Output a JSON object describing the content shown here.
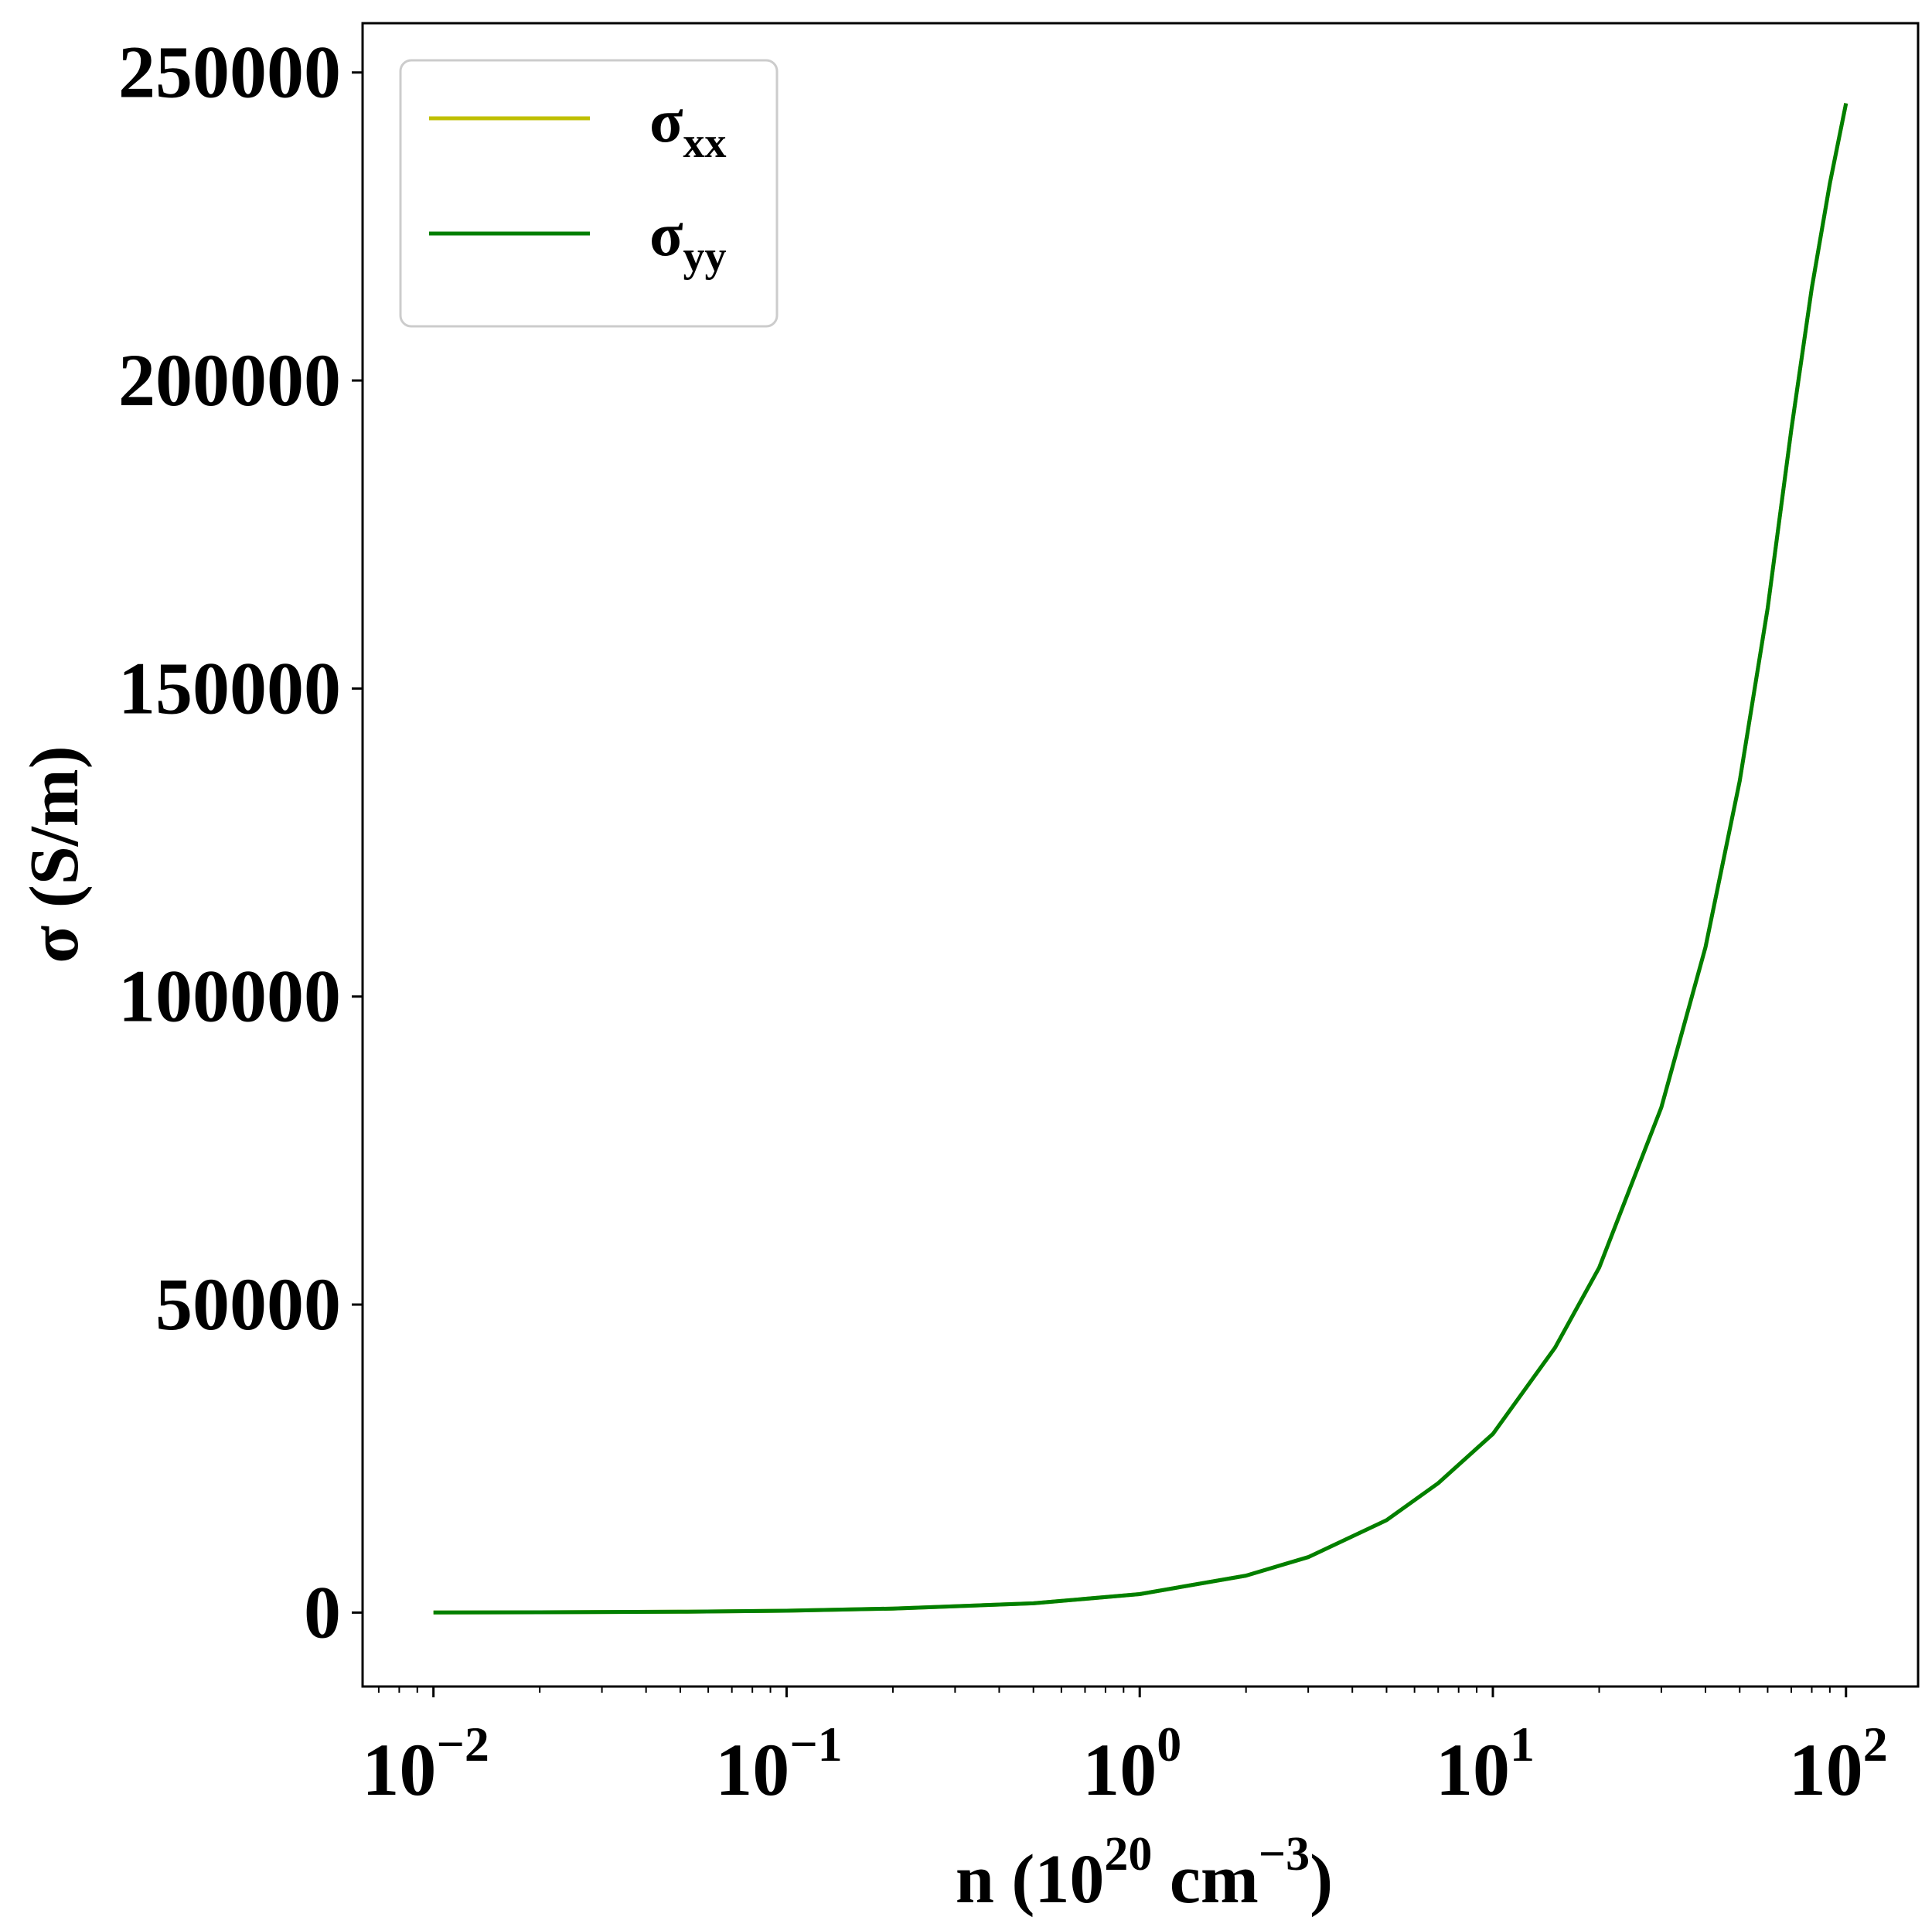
{
  "chart_data": {
    "type": "line",
    "xlabel": {
      "base": "n (10",
      "sup1": "20",
      "mid": " cm",
      "sup2": "−3",
      "end": ")"
    },
    "ylabel": "σ (S/m)",
    "xscale": "log",
    "xlim": [
      0.0063,
      160
    ],
    "ylim": [
      -12000,
      258000
    ],
    "grid": false,
    "legend_position": "top-left",
    "x_ticks": [
      {
        "value": 0.01,
        "base": "10",
        "exp": "−2"
      },
      {
        "value": 0.1,
        "base": "10",
        "exp": "−1"
      },
      {
        "value": 1,
        "base": "10",
        "exp": "0"
      },
      {
        "value": 10,
        "base": "10",
        "exp": "1"
      },
      {
        "value": 100,
        "base": "10",
        "exp": "2"
      }
    ],
    "y_ticks": [
      {
        "value": 0,
        "label": "0"
      },
      {
        "value": 50000,
        "label": "50000"
      },
      {
        "value": 100000,
        "label": "100000"
      },
      {
        "value": 150000,
        "label": "150000"
      },
      {
        "value": 200000,
        "label": "200000"
      },
      {
        "value": 250000,
        "label": "250000"
      }
    ],
    "x": [
      0.01,
      0.02,
      0.05,
      0.1,
      0.2,
      0.5,
      1,
      2,
      3,
      5,
      7,
      10,
      15,
      20,
      30,
      40,
      50,
      60,
      70,
      80,
      90,
      100
    ],
    "series": [
      {
        "name": "σxx",
        "legend_base": "σ",
        "legend_sub": "xx",
        "color": "#bfbf00",
        "values": [
          20,
          50,
          140,
          300,
          650,
          1500,
          3000,
          6000,
          9000,
          15000,
          21000,
          29000,
          43000,
          56000,
          82000,
          108000,
          135000,
          163000,
          192000,
          215000,
          232000,
          245000
        ]
      },
      {
        "name": "σyy",
        "legend_base": "σ",
        "legend_sub": "yy",
        "color": "#007f00",
        "values": [
          20,
          50,
          140,
          300,
          650,
          1500,
          3000,
          6000,
          9000,
          15000,
          21000,
          29000,
          43000,
          56000,
          82000,
          108000,
          135000,
          163000,
          192000,
          215000,
          232000,
          245000
        ]
      }
    ]
  }
}
